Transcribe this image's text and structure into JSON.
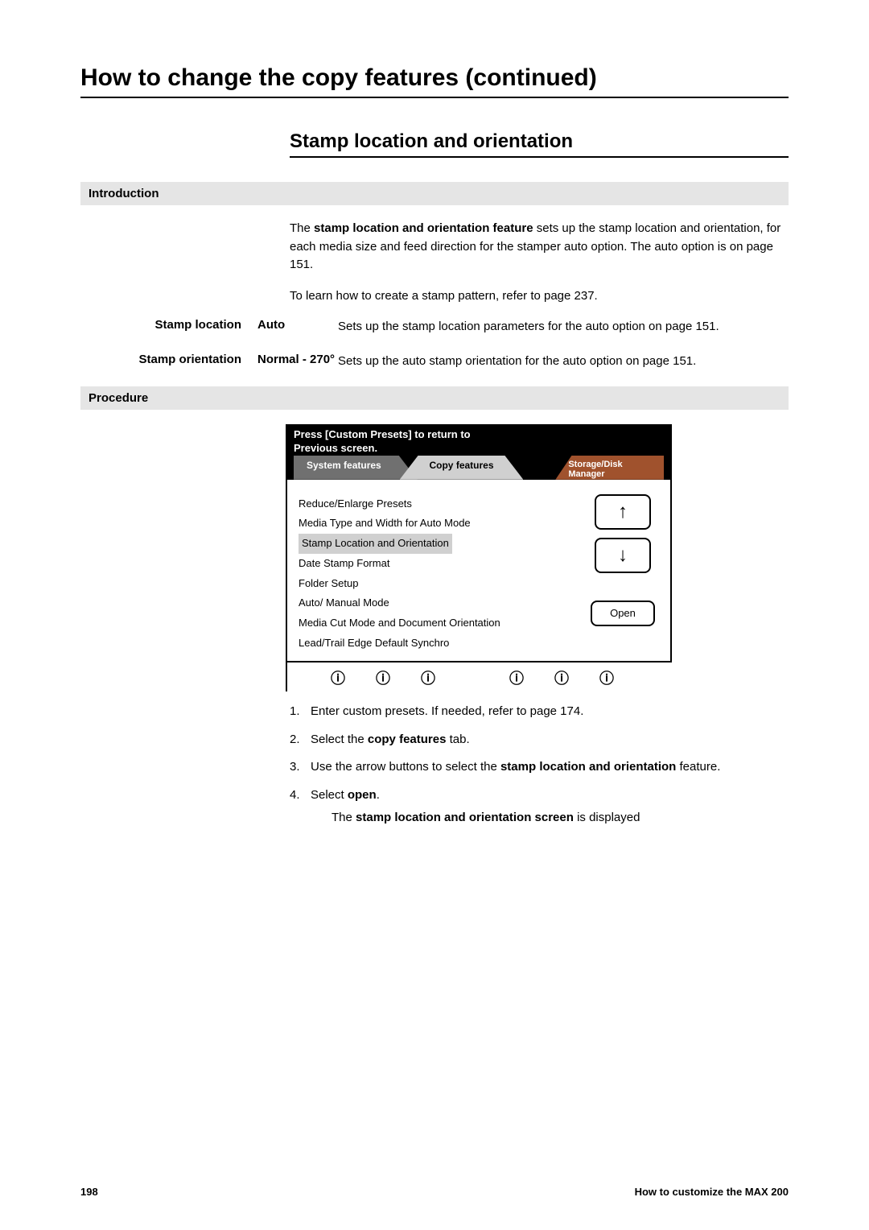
{
  "title": "How to change the copy features (continued)",
  "subtitle": "Stamp location and orientation",
  "sections": {
    "introduction_label": "Introduction",
    "procedure_label": "Procedure"
  },
  "intro": {
    "paragraph1_a": "The ",
    "paragraph1_bold": "stamp location and orientation feature",
    "paragraph1_b": " sets up the stamp location and orientation, for each media size and feed direction for the stamper auto option.  The auto option is on page 151.",
    "paragraph2": "To learn how to create a stamp pattern, refer to page 237."
  },
  "definitions": {
    "stamp_location": {
      "label": "Stamp location",
      "term": "Auto",
      "desc": "Sets up the stamp location parameters for the auto option on page 151."
    },
    "stamp_orientation": {
      "label": "Stamp orientation",
      "term": "Normal - 270°",
      "desc": "Sets up the auto stamp orientation for the auto option on page 151."
    }
  },
  "screen": {
    "header_line1": "Press [Custom Presets] to return to",
    "header_line2": "Previous screen.",
    "tabs": {
      "system": "System features",
      "copy": "Copy features",
      "storage": "Storage/Disk Manager"
    },
    "features": [
      "Reduce/Enlarge Presets",
      "Media Type and Width for Auto Mode",
      "Stamp Location and Orientation",
      "Date Stamp Format",
      "Folder Setup",
      "Auto/ Manual Mode",
      "Media Cut Mode and Document Orientation",
      "Lead/Trail Edge Default Synchro"
    ],
    "highlighted_index": 2,
    "buttons": {
      "up": "↑",
      "down": "↓",
      "open": "Open"
    },
    "soft_button_glyph": "ⓘ"
  },
  "steps": {
    "s1": {
      "num": "1.",
      "text_a": "Enter custom presets.  If needed, refer to page 174."
    },
    "s2": {
      "num": "2.",
      "text_a": "Select the ",
      "bold": "copy features",
      "text_b": " tab."
    },
    "s3": {
      "num": "3.",
      "text_a": "Use the arrow buttons to select the ",
      "bold": "stamp location and orientation",
      "text_b": " feature."
    },
    "s4": {
      "num": "4.",
      "text_a": "Select ",
      "bold": "open",
      "text_b": "."
    },
    "after_a": "The ",
    "after_bold": "stamp location and orientation screen",
    "after_b": " is displayed"
  },
  "footer": {
    "page": "198",
    "chapter": "How to customize the MAX 200"
  },
  "colors": {
    "section_bg": "#e5e5e5",
    "tab_system_bg": "#707070",
    "tab_copy_bg": "#d0d0d0",
    "tab_storage_bg": "#a0522d",
    "highlight_bg": "#d0d0d0"
  }
}
